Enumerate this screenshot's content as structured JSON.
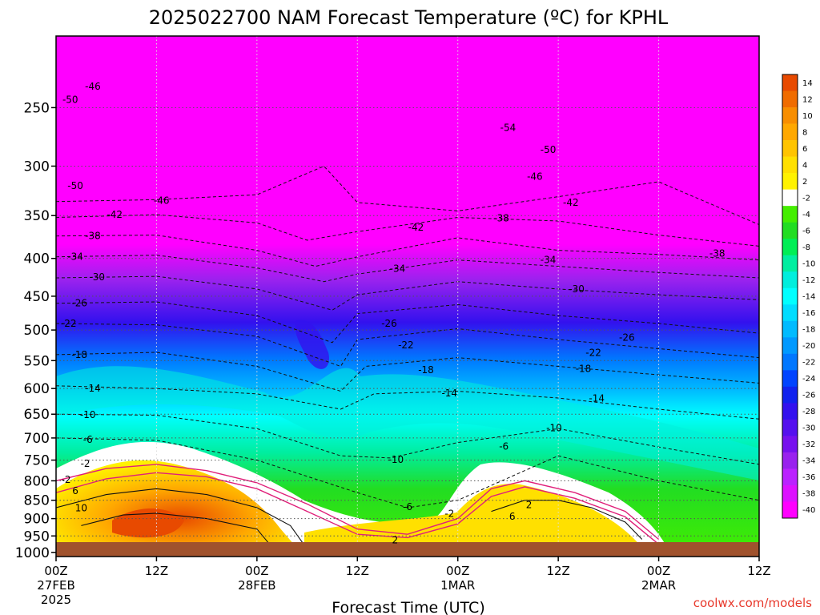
{
  "chart_data": {
    "type": "contour",
    "title": "2025022700 NAM Forecast Temperature (ºC) for KPHL",
    "xlabel": "Forecast Time (UTC)",
    "ylabel": "",
    "credit": "coolwx.com/models",
    "y_axis": {
      "scale": "log",
      "range": [
        1013,
        200
      ],
      "ticks": [
        "250",
        "300",
        "350",
        "400",
        "450",
        "500",
        "550",
        "600",
        "650",
        "700",
        "750",
        "800",
        "850",
        "900",
        "950",
        "1000"
      ]
    },
    "x_axis": {
      "range_hours": [
        0,
        84
      ],
      "ticks": [
        {
          "hour": 0,
          "label": "00Z",
          "date": "27FEB",
          "year": "2025"
        },
        {
          "hour": 12,
          "label": "12Z",
          "date": "",
          "year": ""
        },
        {
          "hour": 24,
          "label": "00Z",
          "date": "28FEB",
          "year": ""
        },
        {
          "hour": 36,
          "label": "12Z",
          "date": "",
          "year": ""
        },
        {
          "hour": 48,
          "label": "00Z",
          "date": "1MAR",
          "year": ""
        },
        {
          "hour": 60,
          "label": "12Z",
          "date": "",
          "year": ""
        },
        {
          "hour": 72,
          "label": "00Z",
          "date": "2MAR",
          "year": ""
        },
        {
          "hour": 84,
          "label": "12Z",
          "date": "",
          "year": ""
        }
      ]
    },
    "grid": true,
    "colorbar": {
      "labels": [
        "14",
        "12",
        "10",
        "8",
        "6",
        "4",
        "2",
        "-2",
        "-4",
        "-6",
        "-8",
        "-10",
        "-12",
        "-14",
        "-16",
        "-18",
        "-20",
        "-22",
        "-24",
        "-26",
        "-28",
        "-30",
        "-32",
        "-34",
        "-36",
        "-38",
        "-40"
      ],
      "colors": [
        "#e84a00",
        "#f06c00",
        "#f88e00",
        "#ffa800",
        "#ffc400",
        "#ffe000",
        "#fff200",
        "#ffffff",
        "#44ee00",
        "#22dd22",
        "#00ee55",
        "#00eea0",
        "#00eedd",
        "#00ffff",
        "#00ddff",
        "#00bbff",
        "#0099ff",
        "#0077ff",
        "#0044ff",
        "#1122ee",
        "#3311ee",
        "#5511ee",
        "#7711ee",
        "#9922ee",
        "#bb22ff",
        "#dd11ff",
        "#ff00ff"
      ]
    },
    "contour_labels": [
      {
        "value": "-46",
        "hour": 4.4,
        "hpa": 234
      },
      {
        "value": "-50",
        "hour": 1.7,
        "hpa": 244
      },
      {
        "value": "-50",
        "hour": 2.3,
        "hpa": 319
      },
      {
        "value": "-46",
        "hour": 12.6,
        "hpa": 334
      },
      {
        "value": "-42",
        "hour": 7.0,
        "hpa": 349
      },
      {
        "value": "-38",
        "hour": 4.4,
        "hpa": 373
      },
      {
        "value": "-34",
        "hour": 2.3,
        "hpa": 398
      },
      {
        "value": "-30",
        "hour": 4.9,
        "hpa": 424
      },
      {
        "value": "-26",
        "hour": 2.8,
        "hpa": 460
      },
      {
        "value": "-22",
        "hour": 1.5,
        "hpa": 490
      },
      {
        "value": "-18",
        "hour": 2.8,
        "hpa": 540
      },
      {
        "value": "-14",
        "hour": 4.4,
        "hpa": 600
      },
      {
        "value": "-10",
        "hour": 3.8,
        "hpa": 651
      },
      {
        "value": "-6",
        "hour": 3.8,
        "hpa": 704
      },
      {
        "value": "-2",
        "hour": 3.5,
        "hpa": 758
      },
      {
        "value": "-2",
        "hour": 1.2,
        "hpa": 797
      },
      {
        "value": "6",
        "hour": 2.3,
        "hpa": 825
      },
      {
        "value": "10",
        "hour": 3.0,
        "hpa": 871
      },
      {
        "value": "-42",
        "hour": 43.0,
        "hpa": 363
      },
      {
        "value": "-34",
        "hour": 40.8,
        "hpa": 413
      },
      {
        "value": "-26",
        "hour": 39.8,
        "hpa": 490
      },
      {
        "value": "-22",
        "hour": 41.8,
        "hpa": 524
      },
      {
        "value": "-18",
        "hour": 44.2,
        "hpa": 566
      },
      {
        "value": "-14",
        "hour": 47.0,
        "hpa": 609
      },
      {
        "value": "-10",
        "hour": 40.6,
        "hpa": 749
      },
      {
        "value": "-6",
        "hour": 42.0,
        "hpa": 868
      },
      {
        "value": "-2",
        "hour": 47.0,
        "hpa": 886
      },
      {
        "value": "2",
        "hour": 40.5,
        "hpa": 963
      },
      {
        "value": "-54",
        "hour": 54.0,
        "hpa": 266
      },
      {
        "value": "-50",
        "hour": 58.8,
        "hpa": 285
      },
      {
        "value": "-46",
        "hour": 57.2,
        "hpa": 310
      },
      {
        "value": "-42",
        "hour": 61.5,
        "hpa": 336
      },
      {
        "value": "-38",
        "hour": 53.2,
        "hpa": 353
      },
      {
        "value": "-34",
        "hour": 58.8,
        "hpa": 402
      },
      {
        "value": "-30",
        "hour": 62.2,
        "hpa": 440
      },
      {
        "value": "-26",
        "hour": 68.2,
        "hpa": 512
      },
      {
        "value": "-22",
        "hour": 64.2,
        "hpa": 537
      },
      {
        "value": "-18",
        "hour": 63.0,
        "hpa": 564
      },
      {
        "value": "-14",
        "hour": 64.6,
        "hpa": 619
      },
      {
        "value": "-10",
        "hour": 59.5,
        "hpa": 679
      },
      {
        "value": "-6",
        "hour": 53.5,
        "hpa": 719
      },
      {
        "value": "2",
        "hour": 56.5,
        "hpa": 862
      },
      {
        "value": "6",
        "hour": 54.5,
        "hpa": 894
      },
      {
        "value": "-38",
        "hour": 79.0,
        "hpa": 394
      }
    ]
  }
}
